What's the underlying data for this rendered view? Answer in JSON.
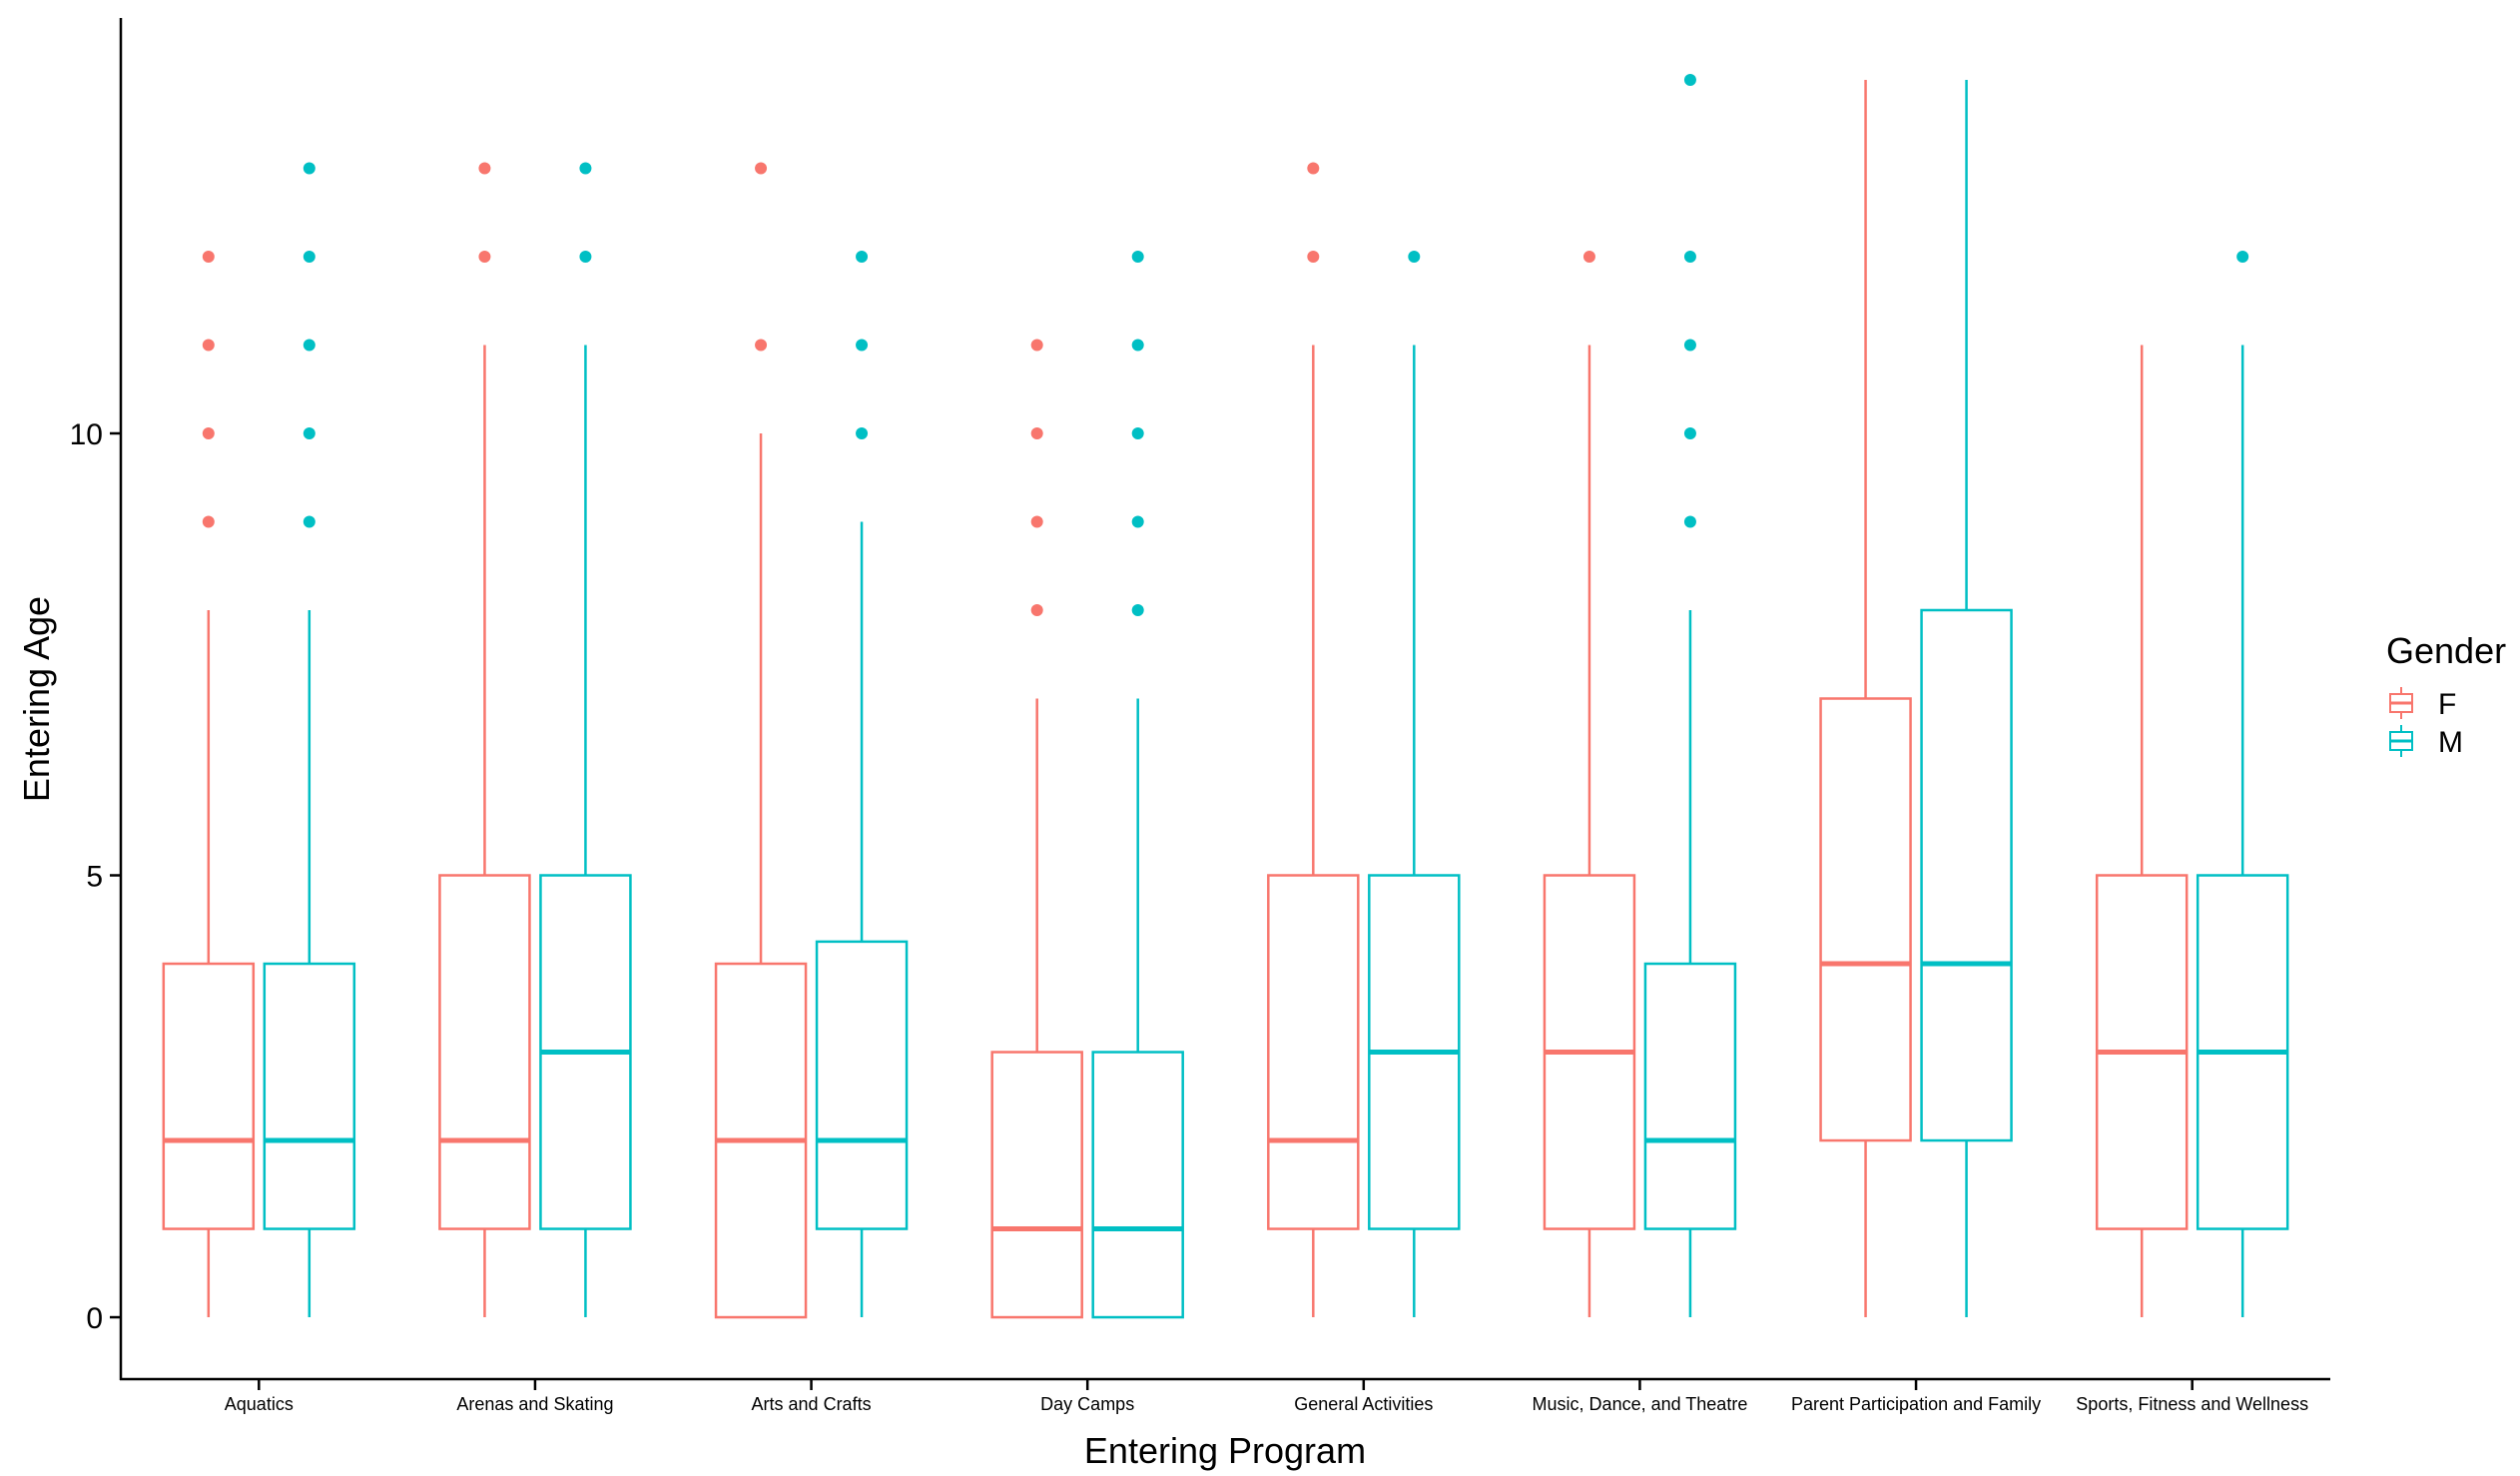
{
  "chart_data": {
    "type": "boxplot",
    "xlabel": "Entering Program",
    "ylabel": "Entering Age",
    "ylim": [
      -0.7,
      14.7
    ],
    "yticks": [
      0,
      5,
      10
    ],
    "legend": {
      "title": "Gender",
      "placement": "right"
    },
    "categories": [
      "Aquatics",
      "Arenas and Skating",
      "Arts and Crafts",
      "Day Camps",
      "General Activities",
      "Music, Dance, and Theatre",
      "Parent Participation and Family",
      "Sports, Fitness and Wellness"
    ],
    "series": [
      {
        "name": "F",
        "color": "#F8766D",
        "boxes": [
          {
            "q1": 1,
            "median": 2,
            "q3": 4,
            "whisker_low": 0,
            "whisker_high": 8,
            "outliers": [
              9,
              10,
              11,
              12
            ]
          },
          {
            "q1": 1,
            "median": 2,
            "q3": 5,
            "whisker_low": 0,
            "whisker_high": 11,
            "outliers": [
              12,
              13
            ]
          },
          {
            "q1": 0,
            "median": 2,
            "q3": 4,
            "whisker_low": 0,
            "whisker_high": 10,
            "outliers": [
              11,
              13
            ]
          },
          {
            "q1": 0,
            "median": 1,
            "q3": 3,
            "whisker_low": 0,
            "whisker_high": 7,
            "outliers": [
              8,
              9,
              10,
              11
            ]
          },
          {
            "q1": 1,
            "median": 2,
            "q3": 5,
            "whisker_low": 0,
            "whisker_high": 11,
            "outliers": [
              12,
              13
            ]
          },
          {
            "q1": 1,
            "median": 3,
            "q3": 5,
            "whisker_low": 0,
            "whisker_high": 11,
            "outliers": [
              12
            ]
          },
          {
            "q1": 2,
            "median": 4,
            "q3": 7,
            "whisker_low": 0,
            "whisker_high": 14,
            "outliers": []
          },
          {
            "q1": 1,
            "median": 3,
            "q3": 5,
            "whisker_low": 0,
            "whisker_high": 11,
            "outliers": []
          }
        ]
      },
      {
        "name": "M",
        "color": "#00BFC4",
        "boxes": [
          {
            "q1": 1,
            "median": 2,
            "q3": 4,
            "whisker_low": 0,
            "whisker_high": 8,
            "outliers": [
              9,
              10,
              11,
              12,
              13
            ]
          },
          {
            "q1": 1,
            "median": 3,
            "q3": 5,
            "whisker_low": 0,
            "whisker_high": 11,
            "outliers": [
              12,
              13
            ]
          },
          {
            "q1": 1,
            "median": 2,
            "q3": 4.25,
            "whisker_low": 0,
            "whisker_high": 9,
            "outliers": [
              10,
              11,
              12
            ]
          },
          {
            "q1": 0,
            "median": 1,
            "q3": 3,
            "whisker_low": 0,
            "whisker_high": 7,
            "outliers": [
              8,
              9,
              10,
              11,
              12
            ]
          },
          {
            "q1": 1,
            "median": 3,
            "q3": 5,
            "whisker_low": 0,
            "whisker_high": 11,
            "outliers": [
              12
            ]
          },
          {
            "q1": 1,
            "median": 2,
            "q3": 4,
            "whisker_low": 0,
            "whisker_high": 8,
            "outliers": [
              9,
              10,
              11,
              12,
              14
            ]
          },
          {
            "q1": 2,
            "median": 4,
            "q3": 8,
            "whisker_low": 0,
            "whisker_high": 14,
            "outliers": []
          },
          {
            "q1": 1,
            "median": 3,
            "q3": 5,
            "whisker_low": 0,
            "whisker_high": 11,
            "outliers": [
              12
            ]
          }
        ]
      }
    ]
  }
}
